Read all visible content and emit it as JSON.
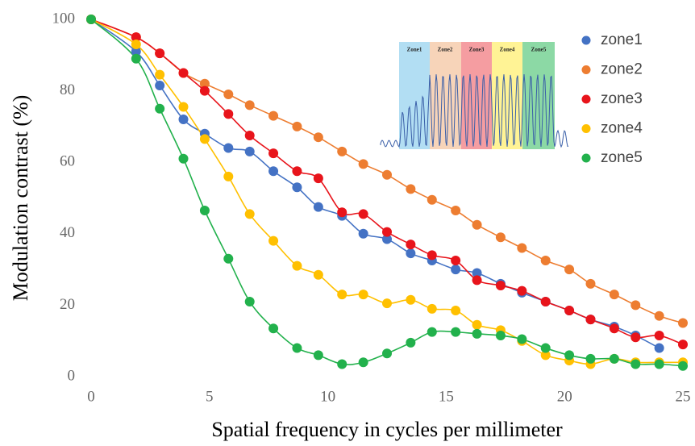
{
  "chart_data": {
    "type": "scatter",
    "xlabel": "Spatial frequency in cycles per millimeter",
    "ylabel": "Modulation contrast (%)",
    "xlim": [
      0,
      25
    ],
    "ylim": [
      0,
      100
    ],
    "xticks": [
      0,
      5,
      10,
      15,
      20,
      25
    ],
    "yticks": [
      0,
      20,
      40,
      60,
      80,
      100
    ],
    "legend": "upper right",
    "inset_labels": [
      "Zone1",
      "Zone2",
      "Zone3",
      "Zone4",
      "Zone5"
    ],
    "x": [
      0,
      1.9,
      2.9,
      3.9,
      4.8,
      5.8,
      6.7,
      7.7,
      8.7,
      9.6,
      10.6,
      11.5,
      12.5,
      13.5,
      14.4,
      15.4,
      16.3,
      17.3,
      18.2,
      19.2,
      20.2,
      21.1,
      22.1,
      23.0,
      24.0,
      25.0
    ],
    "series": [
      {
        "name": "zone1",
        "color": "#4472c4",
        "values": [
          100,
          91,
          81.5,
          72,
          68,
          64,
          63,
          57.5,
          53,
          47.5,
          45,
          40,
          38.5,
          34.5,
          32.5,
          30,
          29,
          26,
          23.5,
          21,
          18.5,
          16,
          14,
          11.5,
          8,
          null
        ]
      },
      {
        "name": "zone2",
        "color": "#ed7d31",
        "values": [
          100,
          95,
          90.5,
          85,
          82,
          79,
          76,
          73,
          70,
          67,
          63,
          59.5,
          56.5,
          52.5,
          49.5,
          46.5,
          42.5,
          39,
          36,
          32.5,
          30,
          26,
          23,
          20,
          17,
          15
        ]
      },
      {
        "name": "zone3",
        "color": "#e8141b",
        "values": [
          100,
          95,
          90.5,
          85,
          80,
          73.5,
          67.5,
          62.5,
          57.5,
          55.5,
          46,
          45.5,
          40.5,
          37,
          34,
          32.5,
          27,
          25.5,
          24,
          21,
          18.5,
          16,
          13.5,
          11,
          11.5,
          9
        ]
      },
      {
        "name": "zone4",
        "color": "#ffc000",
        "values": [
          100,
          93,
          84.5,
          75.5,
          66.5,
          56,
          45.5,
          38,
          31,
          28.5,
          23,
          23,
          20.5,
          21.5,
          19,
          18.5,
          14.5,
          13,
          10,
          6,
          4.5,
          3.5,
          5,
          4,
          4,
          4
        ]
      },
      {
        "name": "zone5",
        "color": "#22b14c",
        "values": [
          100,
          89,
          75,
          61,
          46.5,
          33,
          21,
          13.5,
          8,
          6,
          3.5,
          4,
          6.5,
          9.5,
          12.5,
          12.5,
          12,
          11.5,
          10.5,
          8,
          6,
          5,
          5,
          3.5,
          3.5,
          3
        ]
      }
    ]
  }
}
